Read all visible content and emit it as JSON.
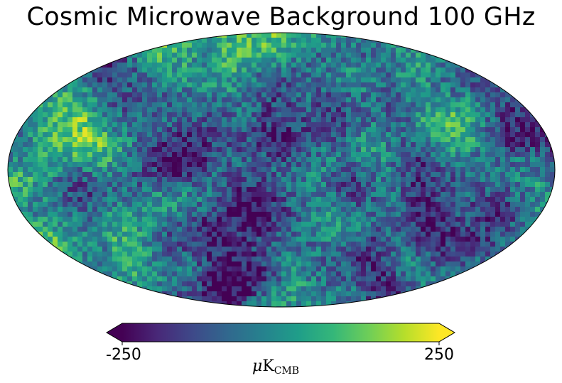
{
  "title": "Cosmic Microwave Background 100 GHz",
  "map": {
    "projection": "mollweide",
    "colormap": "viridis",
    "extend": "both",
    "min": -250,
    "max": 250
  },
  "colorbar": {
    "min_label": "-250",
    "max_label": "250",
    "unit_prefix": "μ",
    "unit_main": "K",
    "unit_sub": "CMB",
    "colors": [
      "#440154",
      "#482878",
      "#3e4989",
      "#31688e",
      "#26828e",
      "#1f9e89",
      "#35b779",
      "#6ece58",
      "#b5de2b",
      "#fde725"
    ]
  }
}
